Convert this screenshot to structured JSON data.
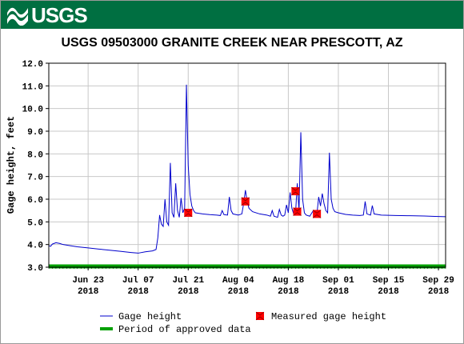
{
  "header": {
    "logo_text": "USGS",
    "logo_icon": "usgs-wave-icon",
    "banner_color": "#006f41"
  },
  "chart_data": {
    "type": "line",
    "title": "USGS 09503000 GRANITE CREEK NEAR PRESCOTT, AZ",
    "ylabel": "Gage height, feet",
    "xlabel": "",
    "ylim": [
      3.0,
      12.0
    ],
    "yticks": [
      "3.0",
      "4.0",
      "5.0",
      "6.0",
      "7.0",
      "8.0",
      "9.0",
      "10.0",
      "11.0",
      "12.0"
    ],
    "xlim": [
      "2018-06-12",
      "2018-10-01"
    ],
    "xticks": [
      {
        "date": "2018-06-23",
        "label": "Jun 23",
        "year": "2018"
      },
      {
        "date": "2018-07-07",
        "label": "Jul 07",
        "year": "2018"
      },
      {
        "date": "2018-07-21",
        "label": "Jul 21",
        "year": "2018"
      },
      {
        "date": "2018-08-04",
        "label": "Aug 04",
        "year": "2018"
      },
      {
        "date": "2018-08-18",
        "label": "Aug 18",
        "year": "2018"
      },
      {
        "date": "2018-09-01",
        "label": "Sep 01",
        "year": "2018"
      },
      {
        "date": "2018-09-15",
        "label": "Sep 15",
        "year": "2018"
      },
      {
        "date": "2018-09-29",
        "label": "Sep 29",
        "year": "2018"
      }
    ],
    "grid": true,
    "legend_position": "bottom",
    "series": [
      {
        "name": "Gage height",
        "color": "#0000cc",
        "points": [
          [
            "2018-06-12",
            3.95
          ],
          [
            "2018-06-12T12",
            3.92
          ],
          [
            "2018-06-13",
            4.02
          ],
          [
            "2018-06-14",
            4.08
          ],
          [
            "2018-06-15",
            4.05
          ],
          [
            "2018-06-16",
            4.0
          ],
          [
            "2018-06-18",
            3.95
          ],
          [
            "2018-06-20",
            3.9
          ],
          [
            "2018-06-23",
            3.85
          ],
          [
            "2018-06-26",
            3.8
          ],
          [
            "2018-06-29",
            3.75
          ],
          [
            "2018-07-02",
            3.7
          ],
          [
            "2018-07-05",
            3.65
          ],
          [
            "2018-07-07",
            3.62
          ],
          [
            "2018-07-09",
            3.68
          ],
          [
            "2018-07-11",
            3.72
          ],
          [
            "2018-07-12",
            3.78
          ],
          [
            "2018-07-12T12",
            4.3
          ],
          [
            "2018-07-13",
            5.3
          ],
          [
            "2018-07-13T12",
            4.9
          ],
          [
            "2018-07-14",
            4.8
          ],
          [
            "2018-07-14T12",
            6.0
          ],
          [
            "2018-07-15",
            5.0
          ],
          [
            "2018-07-15T12",
            4.85
          ],
          [
            "2018-07-16",
            7.6
          ],
          [
            "2018-07-16T12",
            5.4
          ],
          [
            "2018-07-17",
            5.2
          ],
          [
            "2018-07-17T12",
            6.7
          ],
          [
            "2018-07-18",
            5.5
          ],
          [
            "2018-07-18T12",
            5.2
          ],
          [
            "2018-07-19",
            6.05
          ],
          [
            "2018-07-19T12",
            5.4
          ],
          [
            "2018-07-20",
            5.6
          ],
          [
            "2018-07-20T12",
            11.05
          ],
          [
            "2018-07-21",
            7.5
          ],
          [
            "2018-07-21T12",
            6.2
          ],
          [
            "2018-07-22",
            5.7
          ],
          [
            "2018-07-22T12",
            5.5
          ],
          [
            "2018-07-23",
            5.4
          ],
          [
            "2018-07-25",
            5.35
          ],
          [
            "2018-07-27",
            5.32
          ],
          [
            "2018-07-29",
            5.3
          ],
          [
            "2018-07-30",
            5.28
          ],
          [
            "2018-07-30T12",
            5.5
          ],
          [
            "2018-07-31",
            5.32
          ],
          [
            "2018-08-01",
            5.3
          ],
          [
            "2018-08-01T12",
            6.1
          ],
          [
            "2018-08-02",
            5.5
          ],
          [
            "2018-08-02T12",
            5.35
          ],
          [
            "2018-08-04",
            5.3
          ],
          [
            "2018-08-05",
            5.35
          ],
          [
            "2018-08-05T12",
            5.8
          ],
          [
            "2018-08-06",
            6.4
          ],
          [
            "2018-08-06T12",
            5.9
          ],
          [
            "2018-08-07",
            5.6
          ],
          [
            "2018-08-08",
            5.45
          ],
          [
            "2018-08-10",
            5.35
          ],
          [
            "2018-08-12",
            5.3
          ],
          [
            "2018-08-13",
            5.25
          ],
          [
            "2018-08-13T12",
            5.5
          ],
          [
            "2018-08-14",
            5.25
          ],
          [
            "2018-08-15",
            5.2
          ],
          [
            "2018-08-15T12",
            5.55
          ],
          [
            "2018-08-16",
            5.3
          ],
          [
            "2018-08-16T12",
            5.25
          ],
          [
            "2018-08-17",
            5.3
          ],
          [
            "2018-08-17T12",
            5.75
          ],
          [
            "2018-08-18",
            5.4
          ],
          [
            "2018-08-18T12",
            6.3
          ],
          [
            "2018-08-19",
            5.6
          ],
          [
            "2018-08-19T12",
            5.35
          ],
          [
            "2018-08-20",
            5.3
          ],
          [
            "2018-08-20T12",
            6.7
          ],
          [
            "2018-08-21",
            5.5
          ],
          [
            "2018-08-21T12",
            8.95
          ],
          [
            "2018-08-22",
            6.0
          ],
          [
            "2018-08-22T12",
            5.4
          ],
          [
            "2018-08-23",
            5.3
          ],
          [
            "2018-08-24",
            5.25
          ],
          [
            "2018-08-25",
            5.5
          ],
          [
            "2018-08-26",
            5.35
          ],
          [
            "2018-08-26T12",
            6.1
          ],
          [
            "2018-08-27",
            5.7
          ],
          [
            "2018-08-27T12",
            6.25
          ],
          [
            "2018-08-28",
            5.8
          ],
          [
            "2018-08-28T12",
            5.5
          ],
          [
            "2018-08-29",
            5.4
          ],
          [
            "2018-08-29T12",
            8.05
          ],
          [
            "2018-08-30",
            6.0
          ],
          [
            "2018-08-30T12",
            5.6
          ],
          [
            "2018-08-31",
            5.45
          ],
          [
            "2018-09-01",
            5.4
          ],
          [
            "2018-09-03",
            5.33
          ],
          [
            "2018-09-05",
            5.3
          ],
          [
            "2018-09-07",
            5.28
          ],
          [
            "2018-09-08",
            5.3
          ],
          [
            "2018-09-08T12",
            5.9
          ],
          [
            "2018-09-09",
            5.35
          ],
          [
            "2018-09-10",
            5.3
          ],
          [
            "2018-09-10T12",
            5.72
          ],
          [
            "2018-09-11",
            5.35
          ],
          [
            "2018-09-13",
            5.3
          ],
          [
            "2018-09-17",
            5.28
          ],
          [
            "2018-09-21",
            5.27
          ],
          [
            "2018-09-25",
            5.26
          ],
          [
            "2018-09-28",
            5.24
          ],
          [
            "2018-10-01",
            5.23
          ]
        ]
      },
      {
        "name": "Measured gage height",
        "color": "#ff0000",
        "points": [
          [
            "2018-07-21",
            5.4
          ],
          [
            "2018-08-06",
            5.9
          ],
          [
            "2018-08-20",
            6.35
          ],
          [
            "2018-08-20T12",
            5.45
          ],
          [
            "2018-08-26",
            5.35
          ]
        ]
      },
      {
        "name": "Period of approved data",
        "color": "#00a000",
        "points": [
          [
            "2018-06-12",
            3.0
          ],
          [
            "2018-10-01",
            3.0
          ]
        ]
      }
    ]
  }
}
